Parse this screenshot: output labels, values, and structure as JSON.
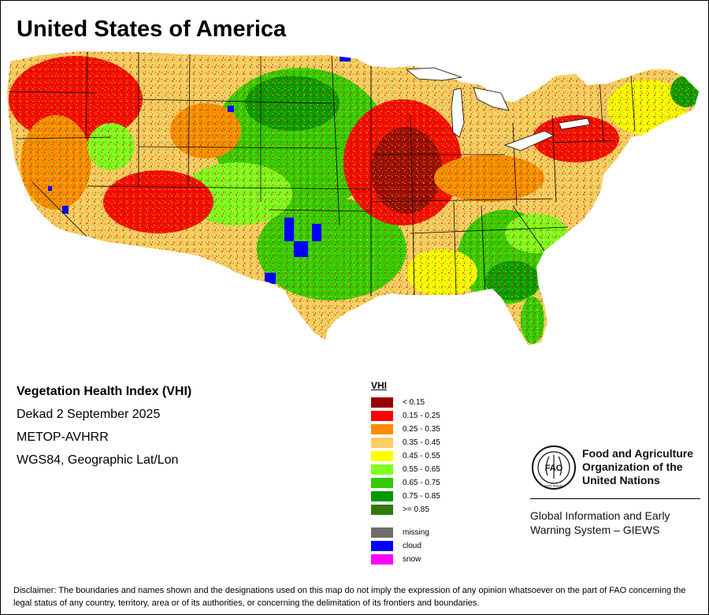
{
  "title": "United States of America",
  "info": {
    "heading": "Vegetation Health Index (VHI)",
    "dekad": "Dekad 2 September 2025",
    "sensor": "METOP-AVHRR",
    "projection": "WGS84, Geographic Lat/Lon"
  },
  "legend": {
    "title": "VHI",
    "classes": [
      {
        "label": "< 0.15",
        "color": "#9b0000"
      },
      {
        "label": "0.15 - 0.25",
        "color": "#ff0000"
      },
      {
        "label": "0.25 - 0.35",
        "color": "#ff8c00"
      },
      {
        "label": "0.35 - 0.45",
        "color": "#ffcc66"
      },
      {
        "label": "0.45 - 0.55",
        "color": "#ffff00"
      },
      {
        "label": "0.55 - 0.65",
        "color": "#80ff20"
      },
      {
        "label": "0.65 - 0.75",
        "color": "#33cc00"
      },
      {
        "label": "0.75 - 0.85",
        "color": "#009900"
      },
      {
        "label": ">= 0.85",
        "color": "#2f7a0a"
      }
    ],
    "special": [
      {
        "label": "missing",
        "color": "#6e6e6e"
      },
      {
        "label": "cloud",
        "color": "#0000ff"
      },
      {
        "label": "snow",
        "color": "#ff00ff"
      }
    ]
  },
  "fao": {
    "name_line1": "Food and Agriculture",
    "name_line2": "Organization of the",
    "name_line3": "United Nations",
    "emblem_letters": "FAO",
    "emblem_motto": "FIAT PANIS",
    "giews_line1": "Global Information and Early",
    "giews_line2": "Warning System – GIEWS"
  },
  "disclaimer": "Disclaimer: The boundaries and names shown and the designations used on this map do not imply the expression of any opinion whatsoever on the part of FAO concerning the legal status of any country, territory, area or of its authorities, or concerning the delimitation of its frontiers and boundaries."
}
